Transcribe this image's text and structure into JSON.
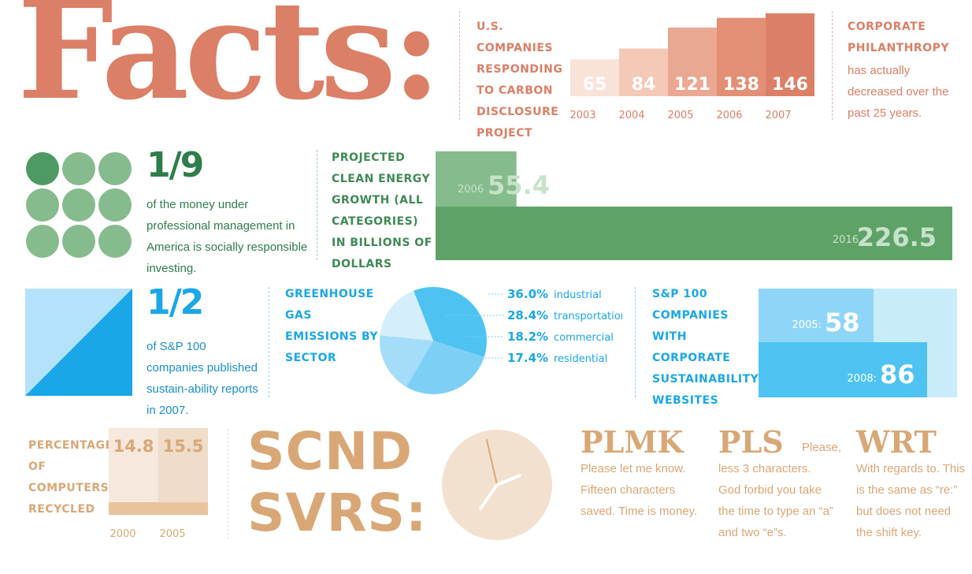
{
  "facts": {
    "title": "Facts:"
  },
  "cdp": {
    "label": "U.S. Companies Responding to Carbon Disclosure Project",
    "colors": [
      "#f9e2d7",
      "#f5c9b7",
      "#eaa892",
      "#e28f76",
      "#db7f66"
    ]
  },
  "philanthropy": {
    "title": "Corporate Philanthropy",
    "text": "has actually decreased over the past 25 years."
  },
  "money": {
    "fraction": "1/9",
    "text": "of the money under professional management in America is socially responsible investing.",
    "dot_colors": {
      "highlight": "#4e9a64",
      "rest": "#86bb8d"
    }
  },
  "clean_energy": {
    "label": "Projected Clean Energy Growth (All Categories) in Billions of Dollars",
    "colors": {
      "2006": "#86bb8d",
      "2016": "#5ea268",
      "text_light": "#c6e3c8"
    }
  },
  "sustainability_reports": {
    "fraction": "1/2",
    "text": "of S&P 100 companies published sustain-ability reports in 2007.",
    "colors": {
      "light": "#b3e2fa",
      "dark": "#1aa7e8"
    }
  },
  "ghg": {
    "label": "Greenhouse Gas Emissions by Sector",
    "colors": [
      "#7ecff6",
      "#a4dcf9",
      "#bfe6fb",
      "#d5eefc"
    ]
  },
  "sp100_websites": {
    "label": "S&P 100 Companies with Corporate Sustainability Websites",
    "colors": {
      "bg": "#c9ecfb",
      "2005": "#8fd5f8",
      "2008": "#4ec3f2"
    }
  },
  "recycling": {
    "label": "Percentage of Computers Recycled",
    "colors": {
      "2000": "#f6e8dc",
      "2005": "#efdcc9",
      "base": "#e8c39c",
      "text": "#d9a776"
    }
  },
  "scnd_svrs": {
    "line1": "SCND",
    "line2": "SVRS:"
  },
  "clock": {
    "face_color": "#f3e1cf",
    "hand_color": "#ffffff",
    "second_hand_color": "#d9a776"
  },
  "abbreviations": [
    {
      "abbr": "PLMK",
      "text": "Please let me know. Fifteen characters saved. Time is money."
    },
    {
      "abbr": "PLS",
      "inline": "Please,",
      "text": "less 3 characters. God forbid you take the time to type an “a” and two “e”s."
    },
    {
      "abbr": "WRT",
      "text": "With regards to. This is the same as “re:” but does not need the shift key."
    }
  ],
  "chart_data": [
    {
      "type": "bar",
      "categories": [
        "2003",
        "2004",
        "2005",
        "2006",
        "2007"
      ],
      "values": [
        65,
        84,
        121,
        138,
        146
      ]
    },
    {
      "type": "bar",
      "orientation": "horizontal",
      "categories": [
        "2006",
        "2016"
      ],
      "values": [
        55.4,
        226.5
      ]
    },
    {
      "type": "pie",
      "categories": [
        "industrial",
        "transportation",
        "commercial",
        "residential"
      ],
      "values": [
        36.0,
        28.4,
        18.2,
        17.4
      ],
      "labels": [
        "36.0%",
        "28.4%",
        "18.2%",
        "17.4%"
      ]
    },
    {
      "type": "bar",
      "orientation": "horizontal",
      "categories": [
        "2005:",
        "2008:"
      ],
      "values": [
        58,
        86
      ]
    },
    {
      "type": "bar",
      "categories": [
        "2000",
        "2005"
      ],
      "values": [
        14.8,
        15.5
      ]
    }
  ]
}
